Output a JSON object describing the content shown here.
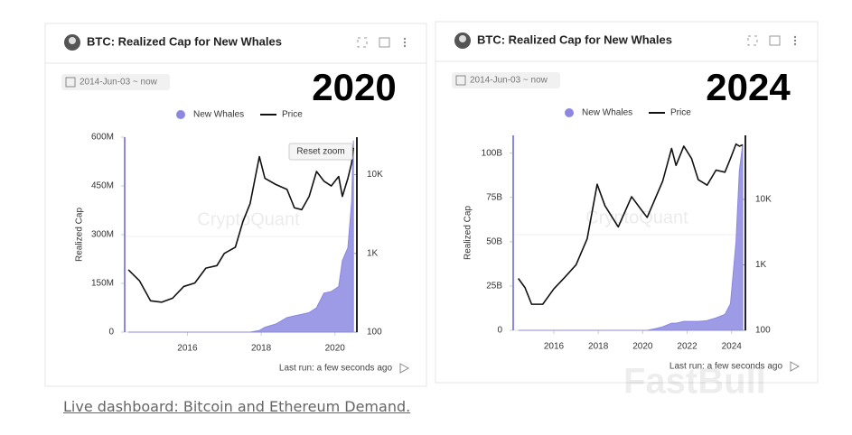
{
  "chart_data": [
    {
      "type": "area-line",
      "title": "BTC: Realized Cap for New Whales",
      "date_range": "2014-Jun-03 ~ now",
      "overlay_label": "2020",
      "reset_button": "Reset zoom",
      "last_run": "Last run: a few seconds ago",
      "watermark": "CryptoQuant",
      "ylabel": "Realized Cap",
      "x": [
        2014.4,
        2014.7,
        2015.0,
        2015.3,
        2015.6,
        2015.9,
        2016.2,
        2016.5,
        2016.8,
        2017.0,
        2017.3,
        2017.5,
        2017.7,
        2017.95,
        2018.1,
        2018.4,
        2018.7,
        2018.9,
        2019.1,
        2019.3,
        2019.5,
        2019.7,
        2019.9,
        2020.1,
        2020.2,
        2020.35,
        2020.45,
        2020.5
      ],
      "series": [
        {
          "name": "New Whales",
          "color": "#8c88e2",
          "values": [
            0,
            0,
            0,
            0,
            0,
            0,
            0,
            0,
            0,
            0,
            0,
            0,
            0,
            5000000,
            15000000,
            25000000,
            45000000,
            50000000,
            55000000,
            60000000,
            75000000,
            120000000,
            125000000,
            140000000,
            220000000,
            260000000,
            400000000,
            590000000
          ]
        },
        {
          "name": "Price",
          "color": "#111111",
          "axis": "y2",
          "values": [
            620,
            450,
            250,
            240,
            270,
            380,
            420,
            650,
            700,
            1000,
            1200,
            2500,
            4300,
            17000,
            9000,
            7500,
            6500,
            3800,
            3600,
            5300,
            11000,
            8300,
            7200,
            9500,
            5300,
            9000,
            14000,
            22000
          ]
        }
      ],
      "xlim": [
        2014.3,
        2020.52
      ],
      "xticks": [
        2016,
        2018,
        2020
      ],
      "ylim": [
        0,
        600000000
      ],
      "yticks": [
        0,
        {
          "value": 150000000,
          "label": "150M"
        },
        {
          "value": 300000000,
          "label": "300M"
        },
        {
          "value": 450000000,
          "label": "450M"
        },
        {
          "value": 600000000,
          "label": "600M"
        }
      ],
      "y2lim": [
        100,
        30000
      ],
      "y2ticks": [
        100,
        {
          "value": 1000,
          "label": "1K"
        },
        {
          "value": 10000,
          "label": "10K"
        }
      ],
      "y2log": true
    },
    {
      "type": "area-line",
      "title": "BTC: Realized Cap for New Whales",
      "date_range": "2014-Jun-03 ~ now",
      "overlay_label": "2024",
      "last_run": "Last run: a few seconds ago",
      "watermark": "CryptoQuant",
      "ylabel": "Realized Cap",
      "x": [
        2014.4,
        2014.7,
        2015.0,
        2015.5,
        2016.0,
        2016.5,
        2017.0,
        2017.5,
        2017.95,
        2018.3,
        2018.9,
        2019.5,
        2019.9,
        2020.2,
        2020.6,
        2020.9,
        2021.3,
        2021.5,
        2021.85,
        2022.2,
        2022.5,
        2022.9,
        2023.3,
        2023.7,
        2023.95,
        2024.2,
        2024.35,
        2024.5
      ],
      "series": [
        {
          "name": "New Whales",
          "color": "#8c88e2",
          "values": [
            0,
            0,
            0,
            0,
            0,
            0,
            0,
            0,
            0,
            0,
            0,
            0,
            0,
            0,
            1000000000,
            2000000000,
            4000000000,
            4000000000,
            5000000000,
            5000000000,
            5000000000,
            5500000000,
            7000000000,
            9000000000,
            15000000000,
            50000000000,
            90000000000,
            105000000000
          ]
        },
        {
          "name": "Price",
          "color": "#111111",
          "axis": "y2",
          "values": [
            620,
            450,
            250,
            250,
            430,
            650,
            1000,
            2500,
            17000,
            8000,
            3800,
            11000,
            7200,
            5300,
            11000,
            19000,
            60000,
            33000,
            65000,
            42000,
            20000,
            16500,
            28000,
            26000,
            42000,
            70000,
            65000,
            68000
          ]
        }
      ],
      "xlim": [
        2014.17,
        2024.5
      ],
      "xticks": [
        2016,
        2018,
        2020,
        2022,
        2024
      ],
      "ylim": [
        0,
        110000000000
      ],
      "yticks": [
        0,
        {
          "value": 25000000000,
          "label": "25B"
        },
        {
          "value": 50000000000,
          "label": "50B"
        },
        {
          "value": 75000000000,
          "label": "75B"
        },
        {
          "value": 100000000000,
          "label": "100B"
        }
      ],
      "y2lim": [
        100,
        95000
      ],
      "y2ticks": [
        100,
        {
          "value": 1000,
          "label": "1K"
        },
        {
          "value": 10000,
          "label": "10K"
        }
      ],
      "y2log": true
    }
  ],
  "caption": "Live dashboard: Bitcoin and Ethereum Demand.",
  "watermark": "FastBull"
}
